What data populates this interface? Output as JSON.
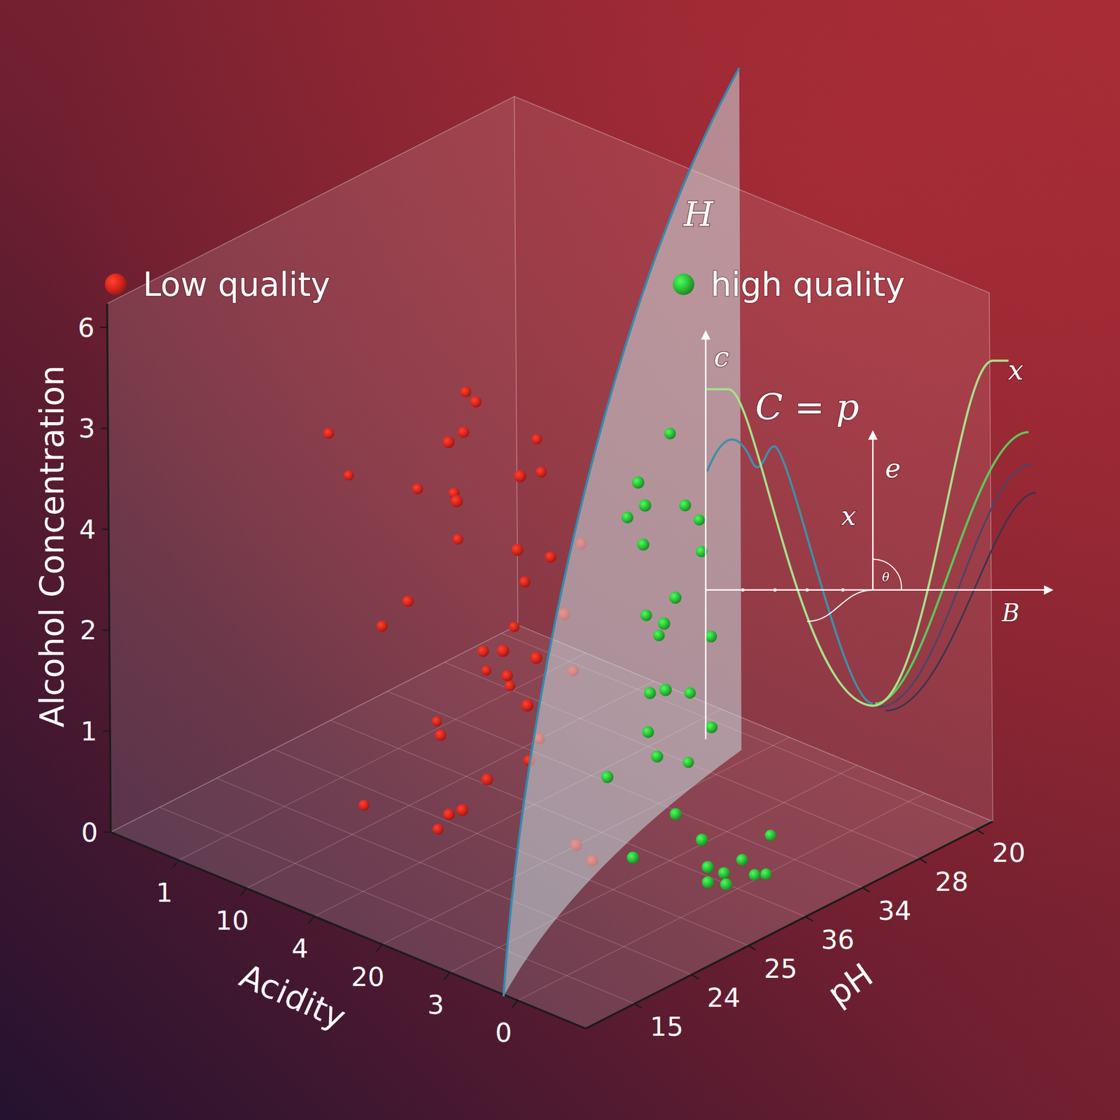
{
  "chart_data": {
    "type": "scatter3d",
    "legend": "top",
    "axes": {
      "x": {
        "title": "Acidity",
        "categories": [
          "1",
          "10",
          "4",
          "20",
          "3",
          "0"
        ]
      },
      "y": {
        "title": "pH",
        "categories": [
          "15",
          "24",
          "25",
          "36",
          "34",
          "28",
          "20"
        ]
      },
      "z": {
        "title": "Alcohol Concentration",
        "categories": [
          "0",
          "1",
          "2",
          "4",
          "3",
          "6"
        ]
      }
    },
    "series": [
      {
        "name": "Low quality",
        "color": "#e0281e",
        "x": [
          2.1,
          2.8,
          3.2,
          2.5,
          3.6,
          1.8,
          2.9,
          3.4,
          2.2,
          3.0,
          2.6,
          3.8,
          1.5,
          2.4,
          3.1,
          2.7,
          3.5,
          2.0,
          3.3,
          2.9,
          1.2,
          2.3,
          3.7,
          2.6,
          3.0,
          1.9,
          2.8,
          3.4,
          2.1,
          3.2,
          0.9,
          2.5,
          3.6,
          2.7,
          1.6,
          3.1,
          2.4,
          3.9,
          2.0,
          2.8
        ],
        "y": [
          1.2,
          0.8,
          1.5,
          2.0,
          1.0,
          0.6,
          1.8,
          2.2,
          1.4,
          0.5,
          1.1,
          1.6,
          1.9,
          0.9,
          2.4,
          1.3,
          0.7,
          1.7,
          1.2,
          2.1,
          0.4,
          1.5,
          2.0,
          0.8,
          1.0,
          2.3,
          1.6,
          1.4,
          0.7,
          1.9,
          1.1,
          2.5,
          0.9,
          1.2,
          0.5,
          1.8,
          2.2,
          1.3,
          1.0,
          0.6
        ],
        "z": [
          0.3,
          0.8,
          1.2,
          1.6,
          2.0,
          2.4,
          2.8,
          3.2,
          3.6,
          4.0,
          4.4,
          0.5,
          1.0,
          1.4,
          1.8,
          2.2,
          2.6,
          3.0,
          3.4,
          3.8,
          4.2,
          4.6,
          0.2,
          0.7,
          1.1,
          1.5,
          1.9,
          2.3,
          2.7,
          3.1,
          3.5,
          3.9,
          4.3,
          4.7,
          0.6,
          1.3,
          2.1,
          2.9,
          3.7,
          4.5
        ]
      },
      {
        "name": "high quality",
        "color": "#2ec83a",
        "x": [
          4.3,
          4.6,
          4.1,
          4.8,
          4.4,
          4.2,
          4.7,
          4.5,
          4.0,
          4.6,
          4.3,
          4.9,
          4.2,
          4.5,
          4.4,
          4.8,
          4.1,
          4.7,
          4.3,
          4.6,
          4.5,
          4.2,
          4.8,
          4.4,
          4.9,
          5.0,
          4.9,
          5.0,
          4.8,
          4.9,
          5.0,
          4.9
        ],
        "y": [
          2.0,
          2.4,
          1.8,
          2.8,
          2.2,
          2.6,
          2.1,
          3.0,
          2.3,
          1.9,
          2.7,
          2.5,
          3.1,
          2.2,
          2.9,
          2.0,
          2.5,
          2.3,
          3.2,
          2.6,
          1.9,
          2.4,
          2.8,
          2.1,
          2.6,
          2.8,
          3.2,
          3.5,
          3.0,
          3.7,
          3.3,
          2.6
        ],
        "z": [
          0.4,
          0.8,
          1.2,
          1.6,
          2.0,
          2.4,
          2.8,
          3.2,
          3.6,
          4.0,
          4.4,
          0.6,
          1.0,
          1.4,
          1.8,
          2.2,
          2.6,
          3.0,
          3.4,
          3.8,
          4.2,
          1.5,
          2.5,
          3.5,
          0.3,
          0.1,
          0.2,
          0.0,
          0.1,
          0.3,
          0.05,
          0.15
        ]
      }
    ],
    "annotations": [
      "H",
      "c",
      "C = p",
      "e",
      "x",
      "x",
      "B",
      "θ"
    ]
  }
}
